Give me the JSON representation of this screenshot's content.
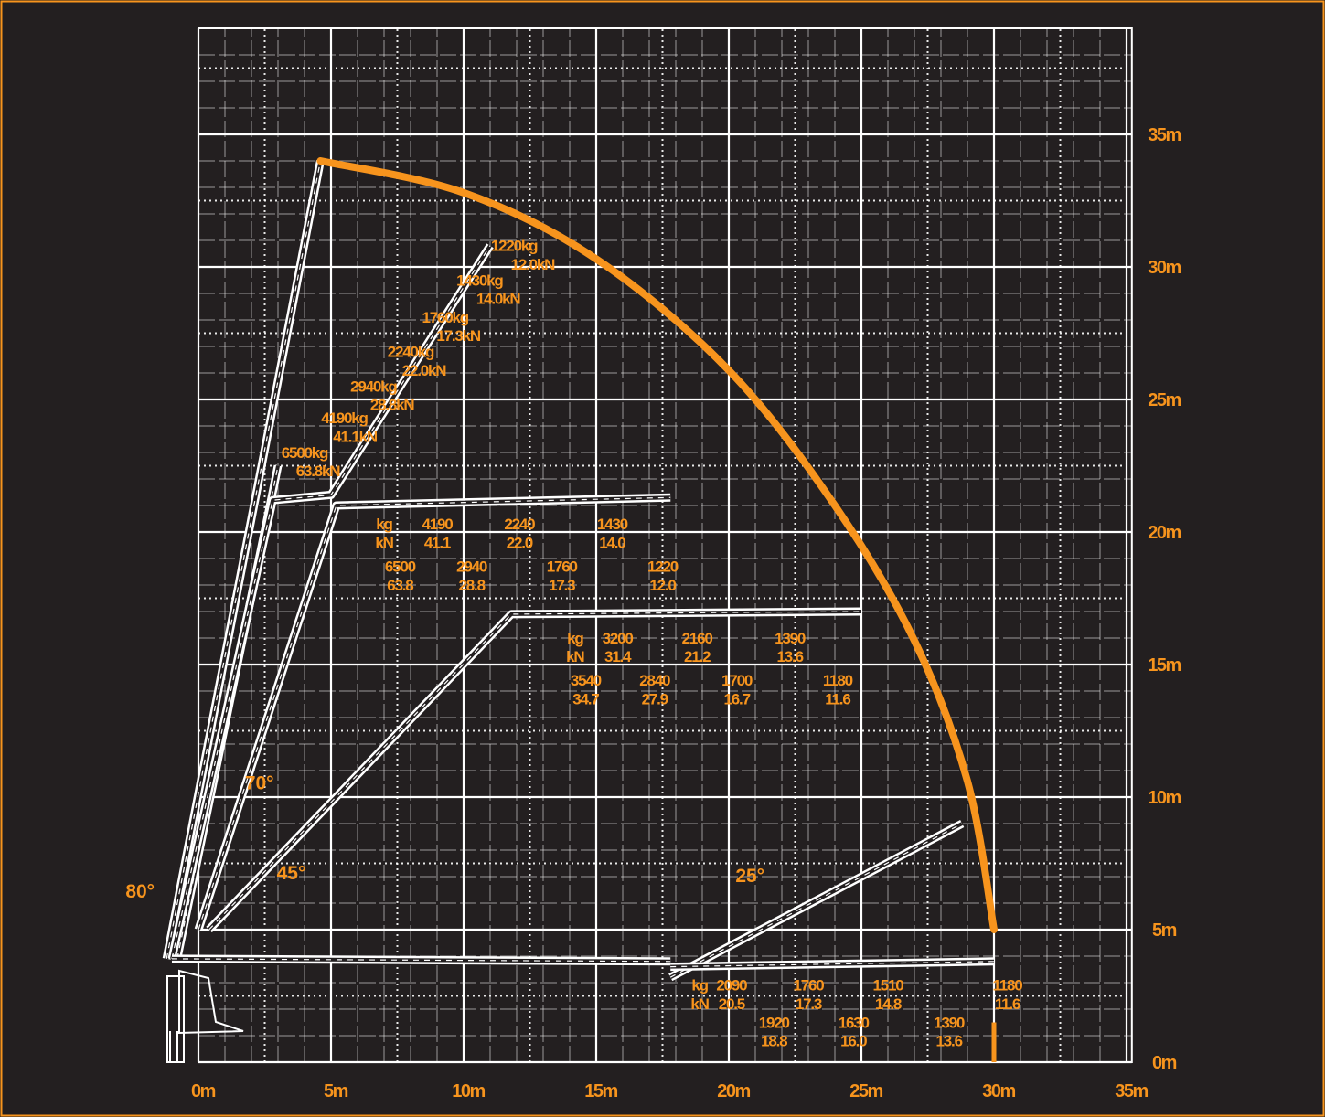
{
  "colors": {
    "background": "#231f20",
    "grid": "#ffffff",
    "accent": "#f7941d",
    "boom": "#ffffff"
  },
  "axes": {
    "x_ticks": [
      {
        "value": 0,
        "label": "0m"
      },
      {
        "value": 5,
        "label": "5m"
      },
      {
        "value": 10,
        "label": "10m"
      },
      {
        "value": 15,
        "label": "15m"
      },
      {
        "value": 20,
        "label": "20m"
      },
      {
        "value": 25,
        "label": "25m"
      },
      {
        "value": 30,
        "label": "30m"
      },
      {
        "value": 35,
        "label": "35m"
      }
    ],
    "y_ticks": [
      {
        "value": 0,
        "label": "0m"
      },
      {
        "value": 5,
        "label": "5m"
      },
      {
        "value": 10,
        "label": "10m"
      },
      {
        "value": 15,
        "label": "15m"
      },
      {
        "value": 20,
        "label": "20m"
      },
      {
        "value": 25,
        "label": "25m"
      },
      {
        "value": 30,
        "label": "30m"
      },
      {
        "value": 35,
        "label": "35m"
      }
    ]
  },
  "angles": [
    {
      "label": "80°",
      "x": -2.2,
      "y": 6.2
    },
    {
      "label": "70°",
      "x": 2.3,
      "y": 10.3
    },
    {
      "label": "45°",
      "x": 3.5,
      "y": 6.9
    },
    {
      "label": "25°",
      "x": 20.8,
      "y": 6.8
    }
  ],
  "booms": [
    {
      "name": "boom-80",
      "points": [
        [
          -1.2,
          3.9
        ],
        [
          4.6,
          34.0
        ]
      ]
    },
    {
      "name": "boom-80-folded",
      "points": [
        [
          -0.8,
          3.9
        ],
        [
          2.8,
          21.5
        ],
        [
          3.0,
          22.5
        ]
      ]
    },
    {
      "name": "boom-70",
      "points": [
        [
          -1.0,
          3.9
        ],
        [
          2.8,
          21.2
        ],
        [
          5.0,
          21.4
        ],
        [
          11.0,
          30.8
        ]
      ]
    },
    {
      "name": "boom-70-hor",
      "points": [
        [
          0.0,
          5.0
        ],
        [
          5.2,
          21.0
        ],
        [
          17.8,
          21.3
        ]
      ]
    },
    {
      "name": "boom-45",
      "points": [
        [
          0.4,
          5.0
        ],
        [
          11.8,
          16.9
        ],
        [
          25.0,
          17.0
        ]
      ]
    },
    {
      "name": "boom-0",
      "points": [
        [
          -1.0,
          3.9
        ],
        [
          17.8,
          3.8
        ]
      ]
    },
    {
      "name": "boom-25",
      "points": [
        [
          17.8,
          3.2
        ],
        [
          28.8,
          9.0
        ]
      ]
    },
    {
      "name": "boom-0-ext",
      "points": [
        [
          17.8,
          3.6
        ],
        [
          30.0,
          3.8
        ]
      ]
    }
  ],
  "envelope": {
    "points": [
      [
        4.6,
        34.0
      ],
      [
        10.0,
        32.8
      ],
      [
        15.0,
        30.3
      ],
      [
        20.0,
        26.1
      ],
      [
        24.0,
        21.0
      ],
      [
        27.0,
        15.9
      ],
      [
        29.0,
        10.6
      ],
      [
        30.0,
        5.0
      ]
    ],
    "tick": [
      [
        30.0,
        0.0
      ],
      [
        30.0,
        1.5
      ]
    ]
  },
  "loads": [
    {
      "text": "1220kg",
      "x": 11.9,
      "y": 30.6
    },
    {
      "text": "12.0kN",
      "x": 12.6,
      "y": 29.9
    },
    {
      "text": "1430kg",
      "x": 10.6,
      "y": 29.3
    },
    {
      "text": "14.0kN",
      "x": 11.3,
      "y": 28.6
    },
    {
      "text": "1760kg",
      "x": 9.3,
      "y": 27.9
    },
    {
      "text": "17.3kN",
      "x": 9.8,
      "y": 27.2
    },
    {
      "text": "2240kg",
      "x": 8.0,
      "y": 26.6
    },
    {
      "text": "22.0kN",
      "x": 8.5,
      "y": 25.9
    },
    {
      "text": "2940kg",
      "x": 6.6,
      "y": 25.3
    },
    {
      "text": "28.8kN",
      "x": 7.3,
      "y": 24.6
    },
    {
      "text": "4190kg",
      "x": 5.5,
      "y": 24.1
    },
    {
      "text": "41.1kN",
      "x": 5.9,
      "y": 23.4
    },
    {
      "text": "6500kg",
      "x": 4.0,
      "y": 22.8
    },
    {
      "text": "63.8kN",
      "x": 4.5,
      "y": 22.1
    },
    {
      "text": "kg",
      "x": 7.0,
      "y": 20.1
    },
    {
      "text": "kN",
      "x": 7.0,
      "y": 19.4
    },
    {
      "text": "4190",
      "x": 9.0,
      "y": 20.1
    },
    {
      "text": "41.1",
      "x": 9.0,
      "y": 19.4
    },
    {
      "text": "2240",
      "x": 12.1,
      "y": 20.1
    },
    {
      "text": "22.0",
      "x": 12.1,
      "y": 19.4
    },
    {
      "text": "1430",
      "x": 15.6,
      "y": 20.1
    },
    {
      "text": "14.0",
      "x": 15.6,
      "y": 19.4
    },
    {
      "text": "6500",
      "x": 7.6,
      "y": 18.5
    },
    {
      "text": "63.8",
      "x": 7.6,
      "y": 17.8
    },
    {
      "text": "2940",
      "x": 10.3,
      "y": 18.5
    },
    {
      "text": "28.8",
      "x": 10.3,
      "y": 17.8
    },
    {
      "text": "1760",
      "x": 13.7,
      "y": 18.5
    },
    {
      "text": "17.3",
      "x": 13.7,
      "y": 17.8
    },
    {
      "text": "1220",
      "x": 17.5,
      "y": 18.5
    },
    {
      "text": "12.0",
      "x": 17.5,
      "y": 17.8
    },
    {
      "text": "kg",
      "x": 14.2,
      "y": 15.8
    },
    {
      "text": "kN",
      "x": 14.2,
      "y": 15.1
    },
    {
      "text": "3200",
      "x": 15.8,
      "y": 15.8
    },
    {
      "text": "31.4",
      "x": 15.8,
      "y": 15.1
    },
    {
      "text": "2160",
      "x": 18.8,
      "y": 15.8
    },
    {
      "text": "21.2",
      "x": 18.8,
      "y": 15.1
    },
    {
      "text": "1390",
      "x": 22.3,
      "y": 15.8
    },
    {
      "text": "13.6",
      "x": 22.3,
      "y": 15.1
    },
    {
      "text": "3540",
      "x": 14.6,
      "y": 14.2
    },
    {
      "text": "34.7",
      "x": 14.6,
      "y": 13.5
    },
    {
      "text": "2840",
      "x": 17.2,
      "y": 14.2
    },
    {
      "text": "27.9",
      "x": 17.2,
      "y": 13.5
    },
    {
      "text": "1700",
      "x": 20.3,
      "y": 14.2
    },
    {
      "text": "16.7",
      "x": 20.3,
      "y": 13.5
    },
    {
      "text": "1180",
      "x": 24.1,
      "y": 14.2
    },
    {
      "text": "11.6",
      "x": 24.1,
      "y": 13.5
    },
    {
      "text": "kg",
      "x": 18.9,
      "y": 2.7
    },
    {
      "text": "kN",
      "x": 18.9,
      "y": 2.0
    },
    {
      "text": "2090",
      "x": 20.1,
      "y": 2.7
    },
    {
      "text": "20.5",
      "x": 20.1,
      "y": 2.0
    },
    {
      "text": "1760",
      "x": 23.0,
      "y": 2.7
    },
    {
      "text": "17.3",
      "x": 23.0,
      "y": 2.0
    },
    {
      "text": "1510",
      "x": 26.0,
      "y": 2.7
    },
    {
      "text": "14.8",
      "x": 26.0,
      "y": 2.0
    },
    {
      "text": "1180",
      "x": 30.5,
      "y": 2.7
    },
    {
      "text": "11.6",
      "x": 30.5,
      "y": 2.0
    },
    {
      "text": "1920",
      "x": 21.7,
      "y": 1.3
    },
    {
      "text": "18.8",
      "x": 21.7,
      "y": 0.6
    },
    {
      "text": "1630",
      "x": 24.7,
      "y": 1.3
    },
    {
      "text": "16.0",
      "x": 24.7,
      "y": 0.6
    },
    {
      "text": "1390",
      "x": 28.3,
      "y": 1.3
    },
    {
      "text": "13.6",
      "x": 28.3,
      "y": 0.6
    }
  ]
}
